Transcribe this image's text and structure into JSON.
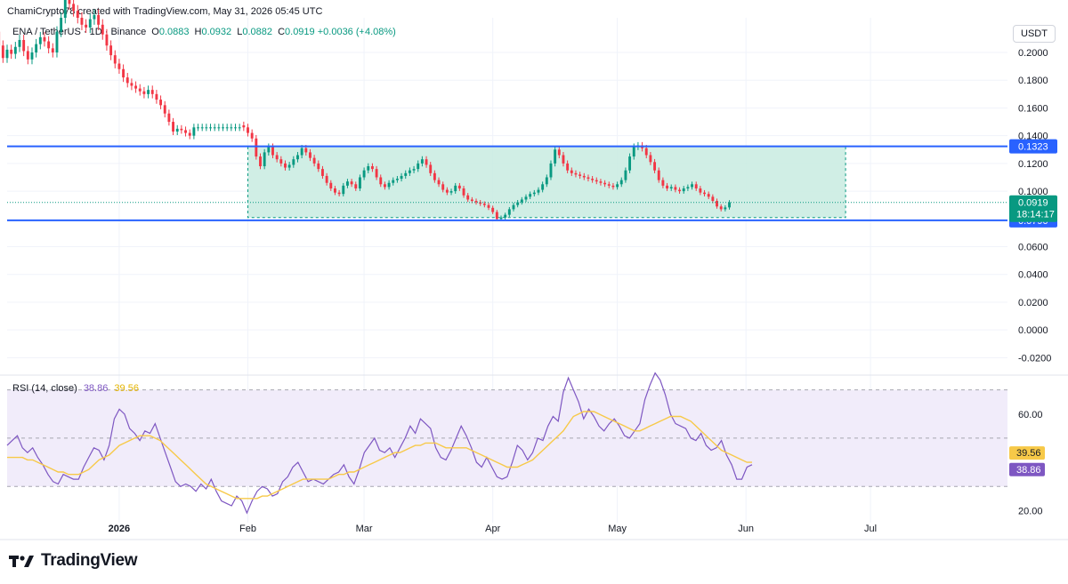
{
  "header": {
    "attribution": "ChamiCrypto78 created with TradingView.com, May 31, 2026 05:45 UTC"
  },
  "legend": {
    "symbol": "ENA / TetherUS · 1D · Binance",
    "open_label": "O",
    "open": "0.0883",
    "high_label": "H",
    "high": "0.0932",
    "low_label": "L",
    "low": "0.0882",
    "close_label": "C",
    "close": "0.0919",
    "change": "+0.0036 (+4.08%)"
  },
  "currency": "USDT",
  "rsi_legend": {
    "label": "RSI (14, close)",
    "rsi_value": "38.86",
    "ma_value": "39.56"
  },
  "brand": {
    "name": "TradingView"
  },
  "colors": {
    "up": "#089981",
    "down": "#f23645",
    "level_line": "#2962ff",
    "range_fill": "#c8ebe0",
    "rsi_line": "#7e57c2",
    "rsi_ma": "#f7c948",
    "rsi_band": "#f1ecfa"
  },
  "chart_data": [
    {
      "type": "candlestick",
      "title": "",
      "yaxis_side": "right",
      "ylim": [
        -0.03,
        0.225
      ],
      "yticks": [
        "0.2000",
        "0.1800",
        "0.1600",
        "0.1400",
        "0.1200",
        "0.1000",
        "0.0600",
        "0.0400",
        "0.0200",
        "0.0000",
        "-0.0200"
      ],
      "ytick_values": [
        0.2,
        0.18,
        0.16,
        0.14,
        0.12,
        0.1,
        0.06,
        0.04,
        0.02,
        0.0,
        -0.02
      ],
      "xtick_labels": [
        "2026",
        "Feb",
        "Mar",
        "Apr",
        "May",
        "Jun",
        "Jul"
      ],
      "xtick_dates": [
        "2026-01-01",
        "2026-02-01",
        "2026-03-01",
        "2026-04-01",
        "2026-05-01",
        "2026-06-01",
        "2026-07-01"
      ],
      "x_range": [
        "2025-12-05",
        "2026-08-03"
      ],
      "levels": [
        {
          "value": 0.1323,
          "label": "0.1323"
        },
        {
          "value": 0.079,
          "label": "0.0790"
        }
      ],
      "last_price": {
        "value": 0.0919,
        "label": "0.0919",
        "countdown": "18:14:17"
      },
      "range_box": {
        "start": "2026-02-01",
        "end": "2026-06-25",
        "top": 0.1323,
        "bottom": 0.081
      },
      "closes_start_date": "2026-01-31",
      "closes": [
        0.146,
        0.142,
        0.138,
        0.125,
        0.118,
        0.128,
        0.132,
        0.126,
        0.123,
        0.12,
        0.117,
        0.119,
        0.123,
        0.126,
        0.131,
        0.128,
        0.124,
        0.12,
        0.116,
        0.111,
        0.106,
        0.102,
        0.099,
        0.098,
        0.104,
        0.107,
        0.105,
        0.102,
        0.11,
        0.115,
        0.118,
        0.116,
        0.11,
        0.105,
        0.103,
        0.106,
        0.108,
        0.109,
        0.111,
        0.113,
        0.115,
        0.116,
        0.12,
        0.123,
        0.119,
        0.113,
        0.108,
        0.105,
        0.101,
        0.099,
        0.1,
        0.104,
        0.102,
        0.097,
        0.094,
        0.093,
        0.092,
        0.091,
        0.09,
        0.088,
        0.085,
        0.08,
        0.081,
        0.083,
        0.087,
        0.09,
        0.092,
        0.094,
        0.096,
        0.098,
        0.099,
        0.101,
        0.105,
        0.11,
        0.12,
        0.13,
        0.126,
        0.12,
        0.115,
        0.113,
        0.112,
        0.111,
        0.11,
        0.109,
        0.108,
        0.107,
        0.106,
        0.105,
        0.104,
        0.103,
        0.105,
        0.108,
        0.115,
        0.125,
        0.132,
        0.133,
        0.131,
        0.126,
        0.121,
        0.115,
        0.108,
        0.104,
        0.102,
        0.103,
        0.101,
        0.1,
        0.102,
        0.103,
        0.105,
        0.102,
        0.099,
        0.098,
        0.096,
        0.093,
        0.089,
        0.087,
        0.0883,
        0.0919
      ],
      "early_start_date": "2025-12-01",
      "early_closes": [
        0.225,
        0.215,
        0.205,
        0.196,
        0.202,
        0.199,
        0.204,
        0.209,
        0.201,
        0.195,
        0.2,
        0.206,
        0.211,
        0.208,
        0.203,
        0.2,
        0.215,
        0.225,
        0.24,
        0.235,
        0.23,
        0.225,
        0.22,
        0.218,
        0.224,
        0.227,
        0.22,
        0.213,
        0.205,
        0.198,
        0.192,
        0.188,
        0.182,
        0.178,
        0.176,
        0.174,
        0.172,
        0.17,
        0.173,
        0.17,
        0.166,
        0.162,
        0.156,
        0.15,
        0.143,
        0.145,
        0.144,
        0.142,
        0.14,
        0.146,
        0.146,
        0.146,
        0.146,
        0.146,
        0.146,
        0.146,
        0.146,
        0.146,
        0.146,
        0.146,
        0.146
      ]
    },
    {
      "type": "line",
      "title": "RSI (14, close)",
      "ylim": [
        15,
        75
      ],
      "yticks": [
        "60.00",
        "20.00"
      ],
      "ytick_values": [
        60,
        20
      ],
      "bands": {
        "upper": 70,
        "middle": 50,
        "lower": 30
      },
      "series": [
        {
          "name": "RSI",
          "values": [
            47,
            49,
            51,
            46,
            44,
            46,
            42,
            39,
            35,
            32,
            31,
            35,
            34,
            33,
            33,
            38,
            42,
            46,
            45,
            41,
            47,
            58,
            62,
            60,
            54,
            52,
            49,
            53,
            52,
            56,
            50,
            44,
            38,
            32,
            30,
            31,
            30,
            28,
            31,
            29,
            33,
            28,
            24,
            23,
            22,
            26,
            24,
            19,
            24,
            28,
            30,
            29,
            26,
            27,
            32,
            34,
            38,
            40,
            36,
            32,
            33,
            32,
            31,
            33,
            35,
            36,
            39,
            34,
            31,
            37,
            44,
            47,
            50,
            45,
            44,
            46,
            42,
            46,
            50,
            55,
            52,
            58,
            56,
            54,
            46,
            42,
            41,
            45,
            50,
            55,
            51,
            46,
            40,
            38,
            42,
            38,
            34,
            33,
            34,
            40,
            47,
            45,
            41,
            44,
            50,
            49,
            55,
            59,
            57,
            69,
            75,
            70,
            65,
            58,
            62,
            59,
            55,
            53,
            56,
            58,
            55,
            51,
            50,
            53,
            56,
            66,
            72,
            77,
            74,
            68,
            60,
            56,
            55,
            54,
            50,
            49,
            52,
            47,
            45,
            46,
            49,
            43,
            39,
            33,
            33,
            38,
            39
          ]
        },
        {
          "name": "RSI-based MA",
          "values": [
            42,
            42,
            42,
            42,
            41,
            41,
            40,
            39,
            38,
            37,
            36,
            36,
            35,
            35,
            35,
            36,
            37,
            39,
            41,
            42,
            43,
            45,
            47,
            48,
            49,
            50,
            51,
            51,
            51,
            50,
            49,
            47,
            45,
            43,
            41,
            39,
            37,
            35,
            33,
            31,
            30,
            29,
            28,
            27,
            26,
            25,
            25,
            25,
            25,
            25,
            26,
            26,
            27,
            28,
            29,
            30,
            31,
            32,
            33,
            33,
            33,
            33,
            33,
            33,
            34,
            35,
            35,
            36,
            36,
            37,
            38,
            39,
            40,
            41,
            42,
            43,
            44,
            44,
            45,
            46,
            47,
            47,
            48,
            48,
            48,
            47,
            46,
            46,
            46,
            46,
            46,
            45,
            44,
            43,
            42,
            41,
            40,
            39,
            38,
            38,
            38,
            39,
            40,
            41,
            43,
            45,
            47,
            49,
            51,
            53,
            56,
            59,
            60,
            61,
            61,
            61,
            60,
            59,
            58,
            57,
            56,
            55,
            54,
            53,
            53,
            54,
            55,
            56,
            57,
            58,
            59,
            59,
            59,
            58,
            57,
            55,
            53,
            51,
            49,
            47,
            45,
            44,
            43,
            42,
            41,
            40,
            40
          ]
        }
      ],
      "last_labels": {
        "ma": "39.56",
        "rsi": "38.86"
      }
    }
  ]
}
